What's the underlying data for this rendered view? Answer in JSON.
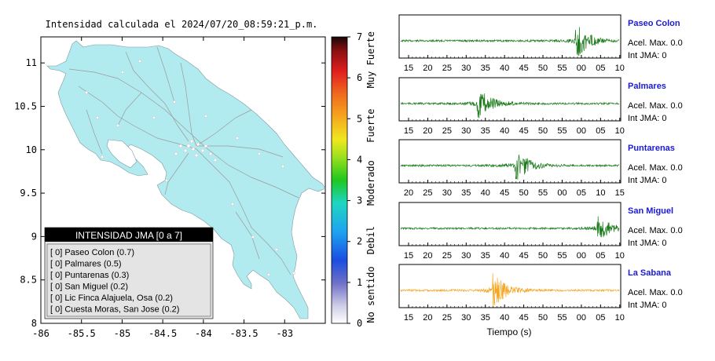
{
  "map": {
    "title": "Intensidad calculada el 2024/07/20_08:59:21_p.m.",
    "x_ticks": [
      "-86",
      "-85.5",
      "-85",
      "-84.5",
      "-84",
      "-83.5",
      "-83"
    ],
    "y_ticks": [
      "11",
      "10.5",
      "10",
      "9.5",
      "9",
      "8.5",
      "8"
    ],
    "xlim": [
      -86,
      -82.5
    ],
    "ylim": [
      8,
      11.3
    ],
    "land_color": "#b2ebef",
    "legend": {
      "title": "INTENSIDAD JMA [0 a 7]",
      "entries": [
        "[ 0]  Paseo Colon (0.7)",
        "[ 0]  Palmares (0.5)",
        "[ 0]  Puntarenas (0.3)",
        "[ 0]  San Miguel (0.2)",
        "[ 0]  Lic Finca Alajuela, Osa (0.2)",
        "[ 0]  Cuesta Moras, San Jose (0.2)"
      ]
    }
  },
  "colorbar": {
    "ticks": [
      "7",
      "6",
      "5",
      "4",
      "3",
      "2",
      "1",
      "0"
    ],
    "labels": [
      "Muy Fuerte",
      "Fuerte",
      "Moderado",
      "Debil",
      "No sentido"
    ]
  },
  "seismograms": {
    "xlabel": "Tiempo (s)",
    "stations": [
      {
        "name": "Paseo Colon",
        "accel": "Acel. Max. 0.0",
        "int": "Int JMA: 0",
        "color": "#1a7a1a",
        "ticks": [
          "15",
          "20",
          "25",
          "30",
          "35",
          "40",
          "45",
          "50",
          "55",
          "00",
          "05",
          "10"
        ],
        "events": [
          [
            0.8,
            1.0
          ]
        ]
      },
      {
        "name": "Palmares",
        "accel": "Acel. Max. 0.0",
        "int": "Int JMA: 0",
        "color": "#1a7a1a",
        "ticks": [
          "15",
          "20",
          "25",
          "30",
          "35",
          "40",
          "45",
          "50",
          "55",
          "00",
          "05",
          "10"
        ],
        "events": [
          [
            0.35,
            0.9
          ]
        ]
      },
      {
        "name": "Puntarenas",
        "accel": "Acel. Max. 0.0",
        "int": "Int JMA: 0",
        "color": "#1a7a1a",
        "ticks": [
          "20",
          "25",
          "30",
          "35",
          "40",
          "45",
          "50",
          "55",
          "00",
          "05",
          "10",
          "15"
        ],
        "events": [
          [
            0.52,
            1.0
          ]
        ]
      },
      {
        "name": "San Miguel",
        "accel": "Acel. Max. 0.0",
        "int": "Int JMA: 0",
        "color": "#1a7a1a",
        "ticks": [
          "15",
          "20",
          "25",
          "30",
          "35",
          "40",
          "45",
          "50",
          "55",
          "00",
          "05",
          "10"
        ],
        "events": [
          [
            0.9,
            0.75
          ]
        ]
      },
      {
        "name": "La Sabana",
        "accel": "Acel. Max. 0.0",
        "int": "Int JMA: 0",
        "color": "#f5a623",
        "ticks": [
          "15",
          "20",
          "25",
          "30",
          "35",
          "40",
          "45",
          "50",
          "55",
          "00",
          "05",
          "10"
        ],
        "events": [
          [
            0.42,
            1.0
          ]
        ]
      }
    ]
  }
}
